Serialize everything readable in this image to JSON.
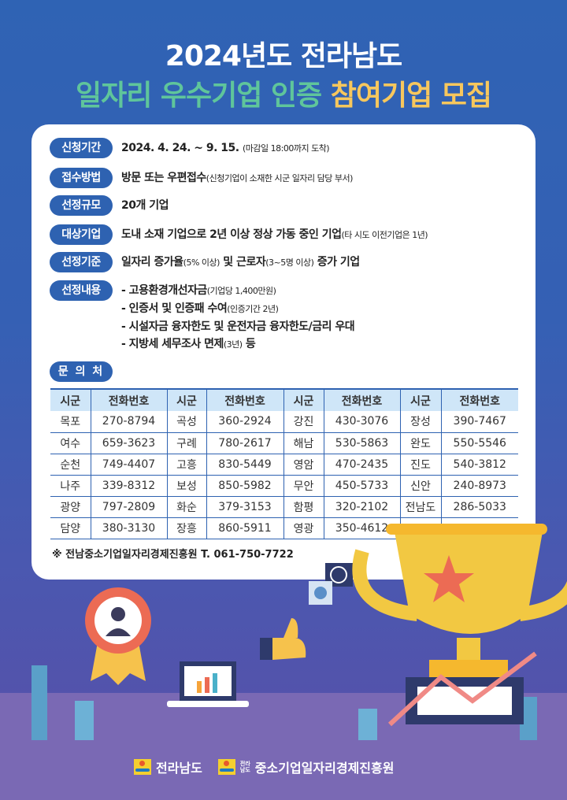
{
  "title": {
    "line1": "2024년도 전라남도",
    "line2_green": "일자리 우수기업 인증",
    "line2_yellow": "참여기업 모집"
  },
  "info": [
    {
      "label": "신청기간",
      "main": "2024. 4. 24. ~ 9. 15.",
      "note": "(마감일 18:00까지 도착)"
    },
    {
      "label": "접수방법",
      "main": "방문 또는 우편접수",
      "note": "(신청기업이 소재한 시군 일자리 담당 부서)"
    },
    {
      "label": "선정규모",
      "main": "20개 기업",
      "note": ""
    },
    {
      "label": "대상기업",
      "main": "도내 소재 기업으로 2년 이상 정상 가동 중인 기업",
      "note": "(타 시도 이전기업은 1년)"
    },
    {
      "label": "선정기준",
      "main_a": "일자리 증가율",
      "note_a": "(5% 이상)",
      "main_b": " 및 근로자",
      "note_b": "(3~5명 이상)",
      "main_c": " 증가 기업"
    }
  ],
  "benefits": {
    "label": "선정내용",
    "items": [
      {
        "main": "- 고용환경개선자금",
        "note": "(기업당 1,400만원)"
      },
      {
        "main": "- 인증서 및 인증패 수여",
        "note": "(인증기간 2년)"
      },
      {
        "main": "- 시설자금 융자한도 및 운전자금 융자한도/금리 우대",
        "note": ""
      },
      {
        "main": "- 지방세 세무조사 면제",
        "note": "(3년)",
        "tail": " 등"
      }
    ]
  },
  "contact": {
    "label": "문 의 처",
    "headers": [
      "시군",
      "전화번호",
      "시군",
      "전화번호",
      "시군",
      "전화번호",
      "시군",
      "전화번호"
    ],
    "rows": [
      [
        "목포",
        "270-8794",
        "곡성",
        "360-2924",
        "강진",
        "430-3076",
        "장성",
        "390-7467"
      ],
      [
        "여수",
        "659-3623",
        "구례",
        "780-2617",
        "해남",
        "530-5863",
        "완도",
        "550-5546"
      ],
      [
        "순천",
        "749-4407",
        "고흥",
        "830-5449",
        "영암",
        "470-2435",
        "진도",
        "540-3812"
      ],
      [
        "나주",
        "339-8312",
        "보성",
        "850-5982",
        "무안",
        "450-5733",
        "신안",
        "240-8973"
      ],
      [
        "광양",
        "797-2809",
        "화순",
        "379-3153",
        "함평",
        "320-2102",
        "전남도",
        "286-5033"
      ],
      [
        "담양",
        "380-3130",
        "장흥",
        "860-5911",
        "영광",
        "350-4612",
        "",
        ""
      ]
    ],
    "footnote": "※ 전남중소기업일자리경제진흥원  T. 061-750-7722"
  },
  "footer": {
    "logo1": "전라남도",
    "logo2_small_top": "전라",
    "logo2_small_bottom": "남도",
    "logo2": "중소기업일자리경제진흥원"
  },
  "colors": {
    "accent": "#2e62b1",
    "title_green": "#5fc59b",
    "title_yellow": "#f7c75d",
    "header_bg": "#cfe6f8"
  }
}
